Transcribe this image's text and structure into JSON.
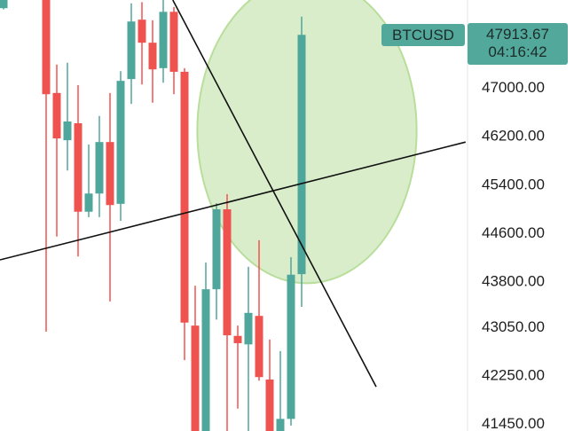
{
  "chart_data": {
    "type": "candlestick",
    "symbol": "BTCUSD",
    "last_price": "47913.67",
    "countdown": "04:16:42",
    "ylim": [
      41320,
      48435
    ],
    "y_ticks": [
      "47000.00",
      "46200.00",
      "45400.00",
      "44600.00",
      "43800.00",
      "43050.00",
      "42250.00",
      "41450.00"
    ],
    "colors": {
      "up": "#4fa69b",
      "down": "#ef5350",
      "highlight": "#b9de9c",
      "label_bg": "#52a89a"
    },
    "candles": [
      {
        "i": 0,
        "o": 48300,
        "h": 48435,
        "l": 48280,
        "c": 48435
      },
      {
        "i": 4,
        "o": 48600,
        "h": 48600,
        "l": 42960,
        "c": 46880
      },
      {
        "i": 5,
        "o": 46900,
        "h": 47370,
        "l": 44530,
        "c": 46150
      },
      {
        "i": 6,
        "o": 46120,
        "h": 47400,
        "l": 45620,
        "c": 46430
      },
      {
        "i": 7,
        "o": 46400,
        "h": 47030,
        "l": 44200,
        "c": 44940
      },
      {
        "i": 8,
        "o": 44940,
        "h": 46050,
        "l": 44850,
        "c": 45240
      },
      {
        "i": 9,
        "o": 45240,
        "h": 46520,
        "l": 44850,
        "c": 46090
      },
      {
        "i": 10,
        "o": 46090,
        "h": 46900,
        "l": 43460,
        "c": 45050
      },
      {
        "i": 11,
        "o": 45070,
        "h": 47260,
        "l": 44790,
        "c": 47100
      },
      {
        "i": 12,
        "o": 47130,
        "h": 48380,
        "l": 46720,
        "c": 48080
      },
      {
        "i": 13,
        "o": 48110,
        "h": 48400,
        "l": 47040,
        "c": 47730
      },
      {
        "i": 14,
        "o": 47730,
        "h": 48100,
        "l": 46740,
        "c": 47290
      },
      {
        "i": 15,
        "o": 47310,
        "h": 48435,
        "l": 47070,
        "c": 48240
      },
      {
        "i": 16,
        "o": 48240,
        "h": 48320,
        "l": 46880,
        "c": 47250
      },
      {
        "i": 17,
        "o": 47250,
        "h": 47310,
        "l": 42490,
        "c": 43110
      },
      {
        "i": 18,
        "o": 43060,
        "h": 43720,
        "l": 41000,
        "c": 41100
      },
      {
        "i": 19,
        "o": 41100,
        "h": 44100,
        "l": 41000,
        "c": 43660
      },
      {
        "i": 20,
        "o": 43660,
        "h": 45080,
        "l": 43160,
        "c": 44980
      },
      {
        "i": 21,
        "o": 44980,
        "h": 45230,
        "l": 41000,
        "c": 42900
      },
      {
        "i": 22,
        "o": 42890,
        "h": 43060,
        "l": 41690,
        "c": 42770
      },
      {
        "i": 23,
        "o": 42750,
        "h": 44030,
        "l": 41000,
        "c": 43270
      },
      {
        "i": 24,
        "o": 43220,
        "h": 44470,
        "l": 42150,
        "c": 42210
      },
      {
        "i": 25,
        "o": 42170,
        "h": 42830,
        "l": 41000,
        "c": 41100
      },
      {
        "i": 26,
        "o": 41100,
        "h": 42640,
        "l": 41000,
        "c": 41520
      },
      {
        "i": 27,
        "o": 41520,
        "h": 44190,
        "l": 41410,
        "c": 43900
      },
      {
        "i": 28,
        "o": 43910,
        "h": 48160,
        "l": 43370,
        "c": 47860
      }
    ],
    "drawings": {
      "trendlines": [
        {
          "i1": -0.33,
          "p1": 44145,
          "i2": 43.4,
          "p2": 46090
        },
        {
          "i1": 15.9,
          "p1": 48435,
          "i2": 35,
          "p2": 42050
        }
      ],
      "ellipse": {
        "ci": 28.5,
        "cp": 46280,
        "ri": 10.3,
        "rp": 2520
      }
    }
  }
}
